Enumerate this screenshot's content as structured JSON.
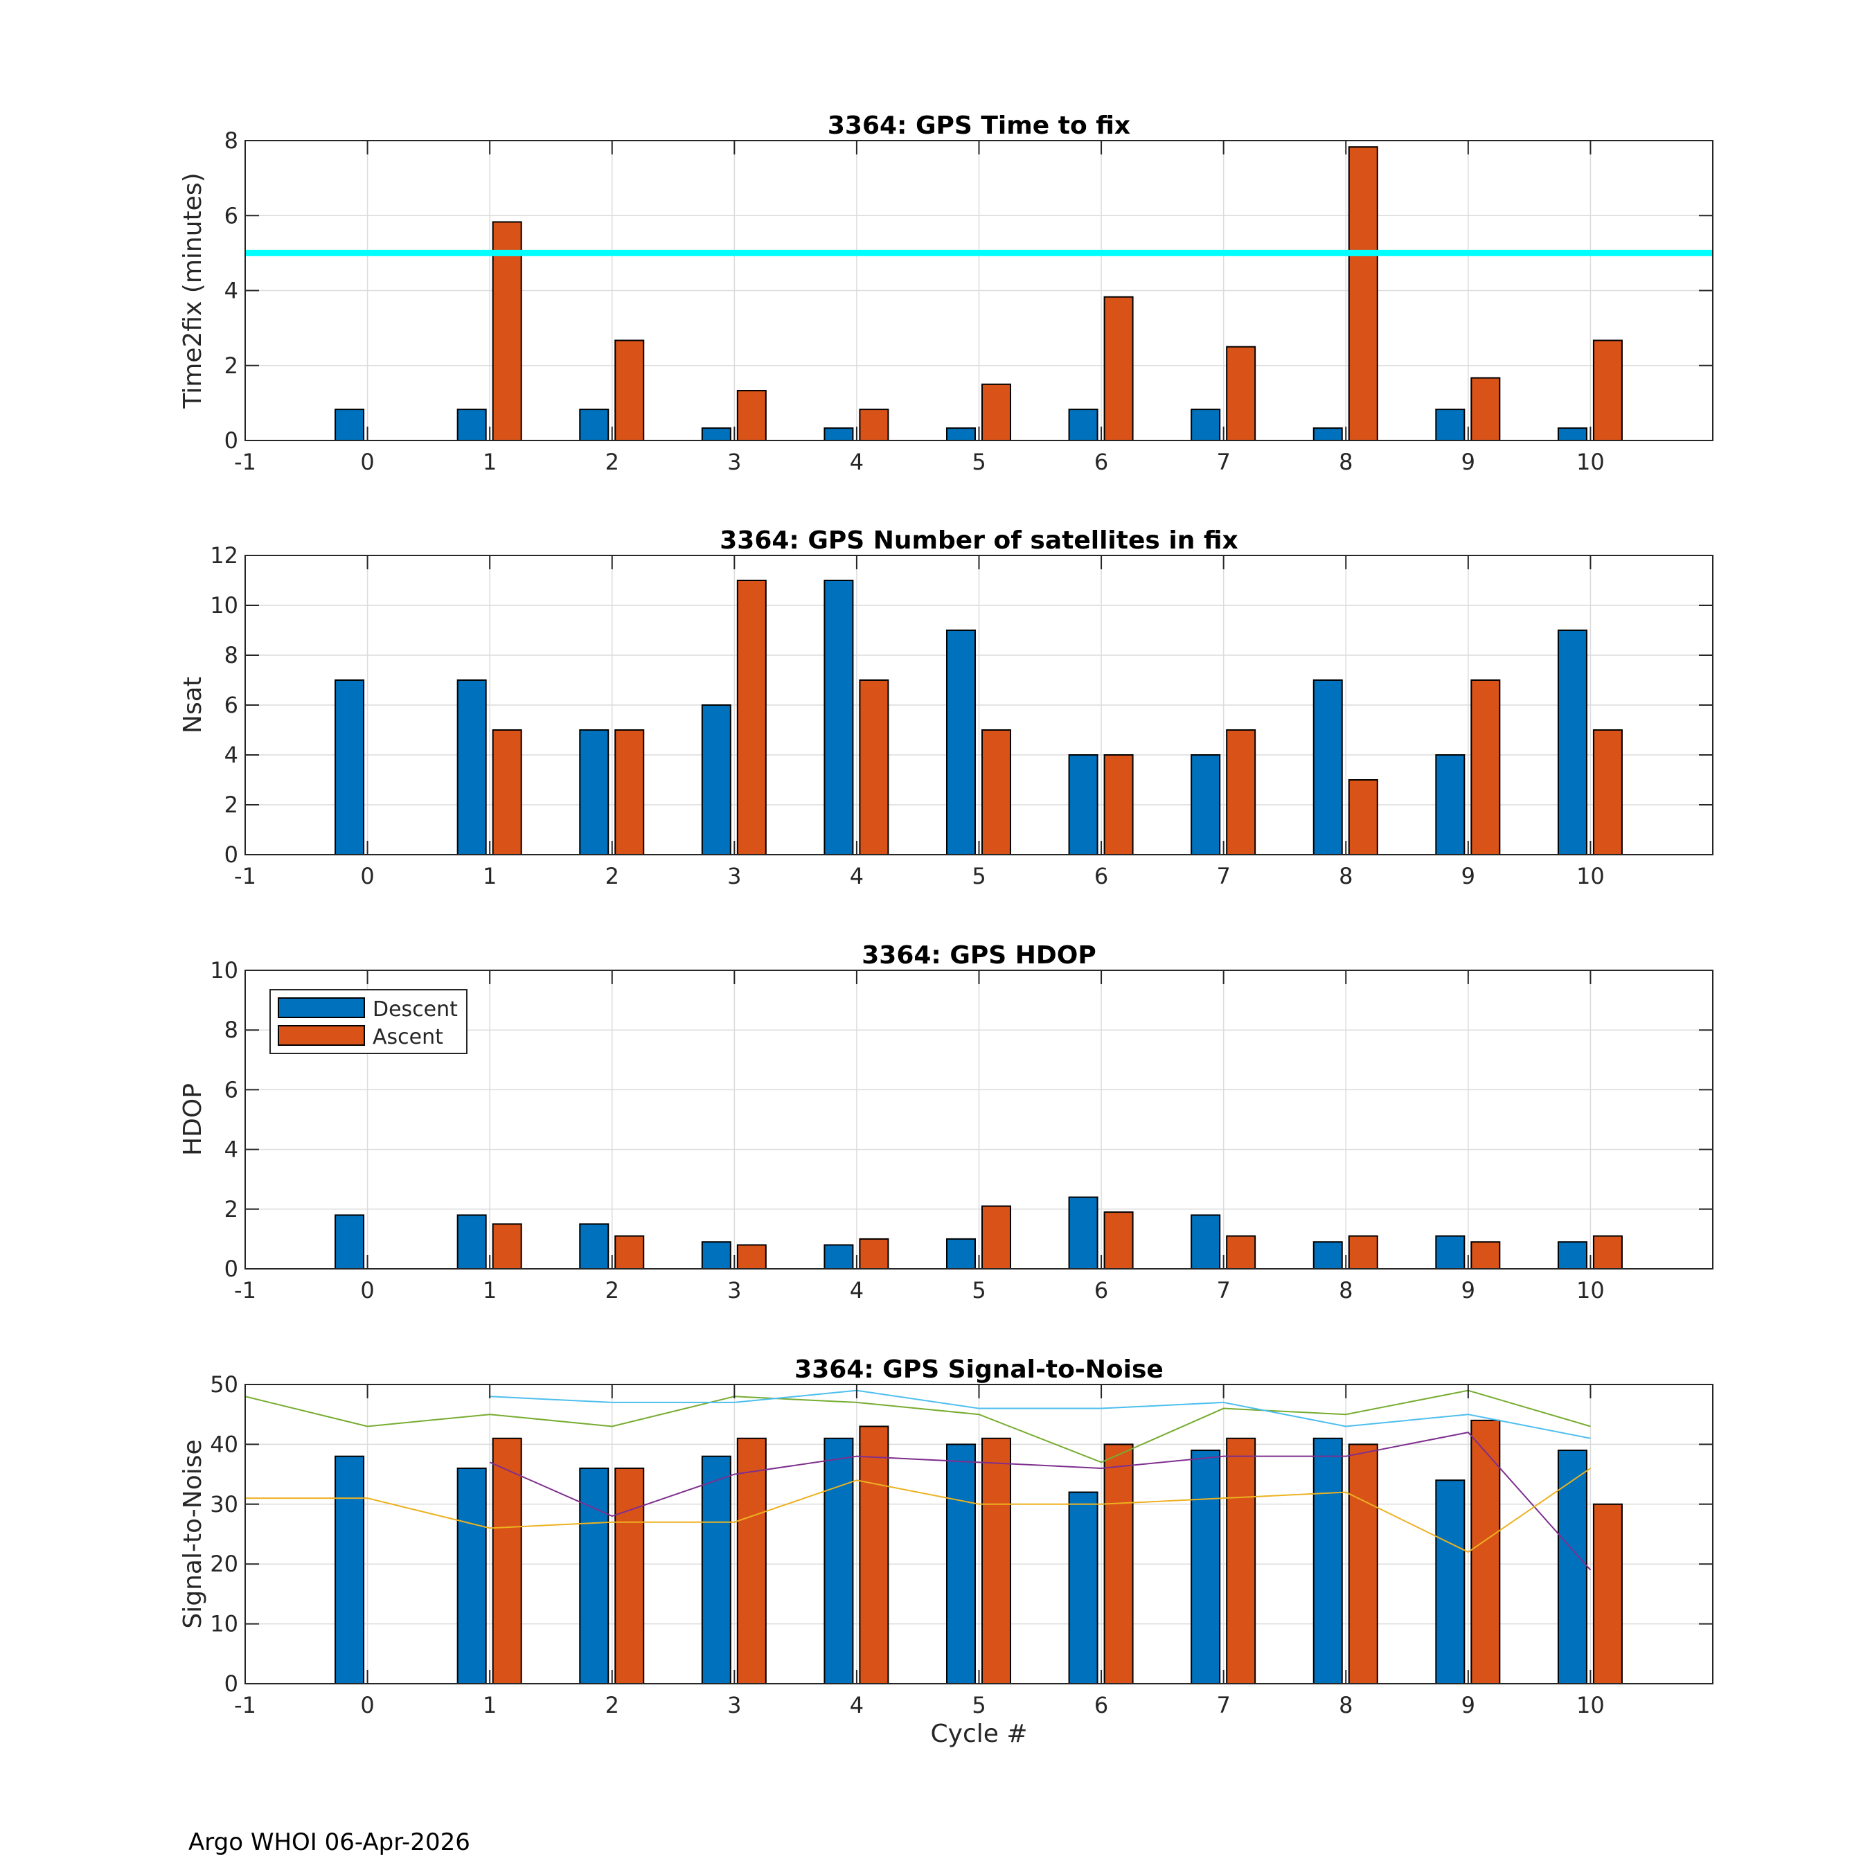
{
  "footer": "Argo WHOI 06-Apr-2026",
  "colors": {
    "descent": "#0072BD",
    "ascent": "#D95319",
    "threshold": "#00FFFF",
    "snr_lines": [
      "#77AC30",
      "#4DBEEE",
      "#7E2F8E",
      "#EDB120"
    ]
  },
  "legend": {
    "descent": "Descent",
    "ascent": "Ascent"
  },
  "chart_data": [
    {
      "type": "bar",
      "title": "3364: GPS Time to fix",
      "ylabel": "Time2fix (minutes)",
      "xlabel": "",
      "xlim": [
        -1,
        11
      ],
      "ylim": [
        0,
        8
      ],
      "xticks": [
        -1,
        0,
        1,
        2,
        3,
        4,
        5,
        6,
        7,
        8,
        9,
        10
      ],
      "yticks": [
        0,
        2,
        4,
        6,
        8
      ],
      "grid": true,
      "x": [
        0,
        1,
        2,
        3,
        4,
        5,
        6,
        7,
        8,
        9,
        10
      ],
      "series": [
        {
          "name": "Descent",
          "values": [
            0.83,
            0.83,
            0.83,
            0.33,
            0.33,
            0.33,
            0.83,
            0.83,
            0.33,
            0.83,
            0.33
          ]
        },
        {
          "name": "Ascent",
          "values": [
            null,
            5.83,
            2.67,
            1.33,
            0.83,
            1.5,
            3.83,
            2.5,
            7.83,
            1.67,
            2.67
          ]
        }
      ],
      "hline": {
        "y": 5
      }
    },
    {
      "type": "bar",
      "title": "3364: GPS Number of satellites in fix",
      "ylabel": "Nsat",
      "xlabel": "",
      "xlim": [
        -1,
        11
      ],
      "ylim": [
        0,
        12
      ],
      "xticks": [
        -1,
        0,
        1,
        2,
        3,
        4,
        5,
        6,
        7,
        8,
        9,
        10
      ],
      "yticks": [
        0,
        2,
        4,
        6,
        8,
        10,
        12
      ],
      "grid": true,
      "x": [
        0,
        1,
        2,
        3,
        4,
        5,
        6,
        7,
        8,
        9,
        10
      ],
      "series": [
        {
          "name": "Descent",
          "values": [
            7,
            7,
            5,
            6,
            11,
            9,
            4,
            4,
            7,
            4,
            9
          ]
        },
        {
          "name": "Ascent",
          "values": [
            null,
            5,
            5,
            11,
            7,
            5,
            4,
            5,
            3,
            7,
            5
          ]
        }
      ]
    },
    {
      "type": "bar",
      "title": "3364: GPS HDOP",
      "ylabel": "HDOP",
      "xlabel": "",
      "xlim": [
        -1,
        11
      ],
      "ylim": [
        0,
        10
      ],
      "xticks": [
        -1,
        0,
        1,
        2,
        3,
        4,
        5,
        6,
        7,
        8,
        9,
        10
      ],
      "yticks": [
        0,
        2,
        4,
        6,
        8,
        10
      ],
      "grid": true,
      "legend": "top-left",
      "x": [
        0,
        1,
        2,
        3,
        4,
        5,
        6,
        7,
        8,
        9,
        10
      ],
      "series": [
        {
          "name": "Descent",
          "values": [
            1.8,
            1.8,
            1.5,
            0.9,
            0.8,
            1.0,
            2.4,
            1.8,
            0.9,
            1.1,
            0.9
          ]
        },
        {
          "name": "Ascent",
          "values": [
            null,
            1.5,
            1.1,
            0.8,
            1.0,
            2.1,
            1.9,
            1.1,
            1.1,
            0.9,
            1.1
          ]
        }
      ]
    },
    {
      "type": "bar",
      "title": "3364: GPS Signal-to-Noise",
      "ylabel": "Signal-to-Noise",
      "xlabel": "Cycle #",
      "xlim": [
        -1,
        11
      ],
      "ylim": [
        0,
        50
      ],
      "xticks": [
        -1,
        0,
        1,
        2,
        3,
        4,
        5,
        6,
        7,
        8,
        9,
        10
      ],
      "yticks": [
        0,
        10,
        20,
        30,
        40,
        50
      ],
      "grid": true,
      "x": [
        0,
        1,
        2,
        3,
        4,
        5,
        6,
        7,
        8,
        9,
        10
      ],
      "series": [
        {
          "name": "Descent",
          "values": [
            38,
            36,
            36,
            38,
            41,
            40,
            32,
            39,
            41,
            34,
            39
          ]
        },
        {
          "name": "Ascent",
          "values": [
            null,
            41,
            36,
            41,
            43,
            41,
            40,
            41,
            40,
            44,
            30
          ]
        }
      ],
      "lines": [
        {
          "x": [
            -1,
            0,
            1,
            2,
            3,
            4,
            5,
            6,
            7,
            8,
            9,
            10
          ],
          "y": [
            48,
            43,
            45,
            43,
            48,
            47,
            45,
            37,
            46,
            45,
            49,
            43
          ]
        },
        {
          "x": [
            1,
            2,
            3,
            4,
            5,
            6,
            7,
            8,
            9,
            10
          ],
          "y": [
            48,
            47,
            47,
            49,
            46,
            46,
            47,
            43,
            45,
            41
          ]
        },
        {
          "x": [
            1,
            2,
            3,
            4,
            5,
            6,
            7,
            8,
            9,
            10
          ],
          "y": [
            37,
            28,
            35,
            38,
            37,
            36,
            38,
            38,
            42,
            19
          ]
        },
        {
          "x": [
            -1,
            0,
            1,
            2,
            3,
            4,
            5,
            6,
            7,
            8,
            9,
            10
          ],
          "y": [
            31,
            31,
            26,
            27,
            27,
            34,
            30,
            30,
            31,
            32,
            22,
            36
          ]
        }
      ]
    }
  ]
}
